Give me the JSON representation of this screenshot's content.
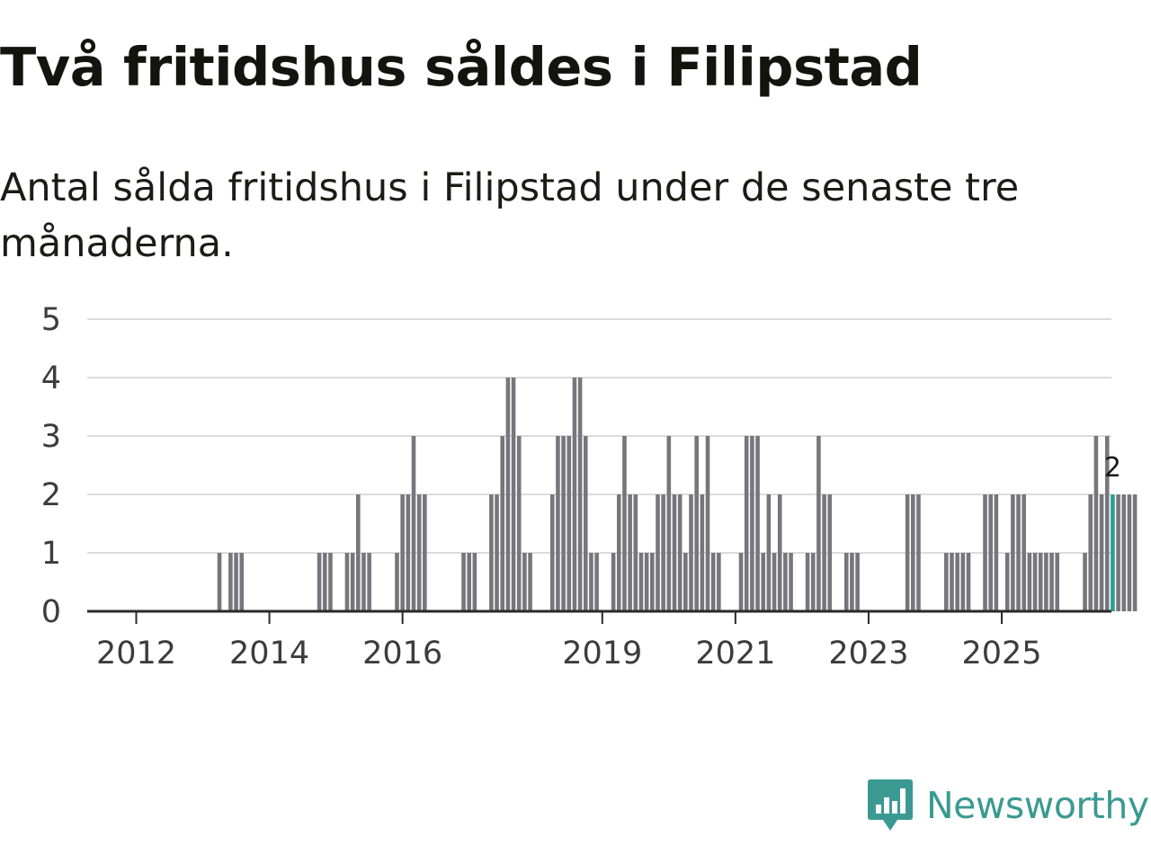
{
  "title": "Två fritidshus såldes i Filipstad",
  "subtitle": "Antal sålda fritidshus i Filipstad under de senaste tre månaderna.",
  "brand": {
    "name": "Newsworthy",
    "icon": "newsworthy-logo-icon"
  },
  "colors": {
    "bar": "#77767c",
    "highlight": "#25a093",
    "grid": "#dcdcdc",
    "axis": "#2a2a2a",
    "brand": "#3a9a92"
  },
  "chart_data": {
    "type": "bar",
    "title": "Två fritidshus såldes i Filipstad",
    "xlabel": "",
    "ylabel": "",
    "ylim": [
      0,
      5
    ],
    "yticks": [
      0,
      1,
      2,
      3,
      4,
      5
    ],
    "xticks": [
      {
        "label": "2012",
        "month": 0
      },
      {
        "label": "2014",
        "month": 24
      },
      {
        "label": "2016",
        "month": 48
      },
      {
        "label": "2019",
        "month": 84
      },
      {
        "label": "2021",
        "month": 108
      },
      {
        "label": "2023",
        "month": 132
      },
      {
        "label": "2025",
        "month": 156
      }
    ],
    "grid": true,
    "start": "2011-09",
    "interval": "monthly, rolling 3-month sum",
    "values": [
      0,
      0,
      0,
      0,
      0,
      0,
      0,
      0,
      0,
      0,
      0,
      0,
      0,
      0,
      0,
      1,
      0,
      1,
      1,
      1,
      0,
      0,
      0,
      0,
      0,
      0,
      0,
      0,
      0,
      0,
      0,
      0,
      0,
      1,
      1,
      1,
      0,
      0,
      1,
      1,
      2,
      1,
      1,
      0,
      0,
      0,
      0,
      1,
      2,
      2,
      3,
      2,
      2,
      0,
      0,
      0,
      0,
      0,
      0,
      1,
      1,
      1,
      0,
      0,
      2,
      2,
      3,
      4,
      4,
      3,
      1,
      1,
      0,
      0,
      0,
      2,
      3,
      3,
      3,
      4,
      4,
      3,
      1,
      1,
      0,
      0,
      1,
      2,
      3,
      2,
      2,
      1,
      1,
      1,
      2,
      2,
      3,
      2,
      2,
      1,
      2,
      3,
      2,
      3,
      1,
      1,
      0,
      0,
      0,
      1,
      3,
      3,
      3,
      1,
      2,
      1,
      2,
      1,
      1,
      0,
      0,
      1,
      1,
      3,
      2,
      2,
      0,
      0,
      1,
      1,
      1,
      0,
      0,
      0,
      0,
      0,
      0,
      0,
      0,
      2,
      2,
      2,
      0,
      0,
      0,
      0,
      1,
      1,
      1,
      1,
      1,
      0,
      0,
      2,
      2,
      2,
      0,
      1,
      2,
      2,
      2,
      1,
      1,
      1,
      1,
      1,
      1,
      0,
      0,
      0,
      0,
      1,
      2,
      3,
      2,
      3,
      2,
      2,
      2,
      2,
      2
    ],
    "highlight_index": 176,
    "highlight_label": "2"
  }
}
